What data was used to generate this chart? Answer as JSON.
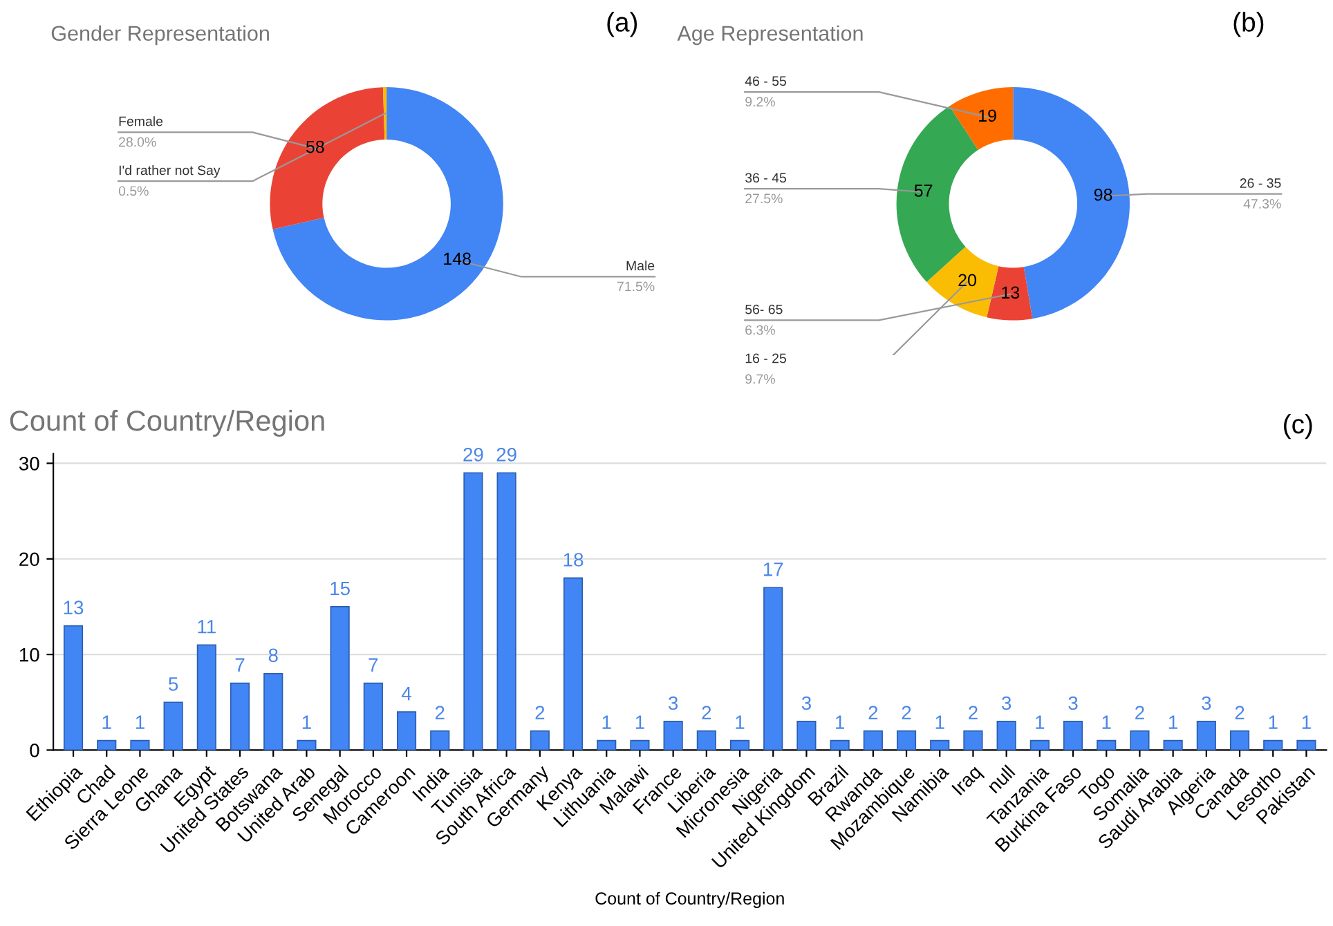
{
  "chart_data": [
    {
      "type": "donut",
      "title": "Gender Representation",
      "categories": [
        "Male",
        "Female",
        "I'd rather not Say"
      ],
      "values": [
        148,
        58,
        1
      ],
      "value_labels": [
        "148",
        "58",
        null
      ],
      "colors": [
        "#4285f4",
        "#ea4335",
        "#fbbc04"
      ],
      "annotations": [
        {
          "text": "71.5%",
          "x": "Male"
        },
        {
          "text": "28.0%",
          "x": "Female"
        },
        {
          "text": "0.5%",
          "x": "I'd rather not Say"
        },
        "(a)"
      ]
    },
    {
      "type": "donut",
      "title": "Age Representation",
      "categories": [
        "26 - 35",
        "56- 65",
        "16 - 25",
        "36 - 45",
        "46 - 55"
      ],
      "values": [
        98,
        13,
        20,
        57,
        19
      ],
      "data_labels": true,
      "colors": [
        "#4285f4",
        "#ea4335",
        "#fbbc04",
        "#34a853",
        "#ff6d01"
      ],
      "annotations": [
        {
          "text": "47.3%",
          "x": "26 - 35"
        },
        {
          "text": "6.3%",
          "x": "56- 65"
        },
        {
          "text": "9.7%",
          "x": "16 - 25"
        },
        {
          "text": "27.5%",
          "x": "36 - 45"
        },
        {
          "text": "9.2%",
          "x": "46 - 55"
        },
        "(b)"
      ]
    },
    {
      "type": "bar",
      "title": "Count of Country/Region",
      "xlabel": "Count of Country/Region",
      "categories": [
        "Ethiopia",
        "Chad",
        "Sierra Leone",
        "Ghana",
        "Egypt",
        "United States",
        "Botswana",
        "United Arab",
        "Senegal",
        "Morocco",
        "Cameroon",
        "India",
        "Tunisia",
        "South Africa",
        "Germany",
        "Kenya",
        "Lithuania",
        "Malawi",
        "France",
        "Liberia",
        "Micronesia",
        "Nigeria",
        "United Kingdom",
        "Brazil",
        "Rwanda",
        "Mozambique",
        "Namibia",
        "Iraq",
        "null",
        "Tanzania",
        "Burkina Faso",
        "Togo",
        "Somalia",
        "Saudi Arabia",
        "Algeria",
        "Canada",
        "Lesotho",
        "Pakistan"
      ],
      "values": [
        13,
        1,
        1,
        5,
        11,
        7,
        8,
        1,
        15,
        7,
        4,
        2,
        29,
        29,
        2,
        18,
        1,
        1,
        3,
        2,
        1,
        17,
        3,
        1,
        2,
        2,
        1,
        2,
        3,
        1,
        3,
        1,
        2,
        1,
        3,
        2,
        1,
        1
      ],
      "color": "#4285f4",
      "ylim": [
        0,
        31
      ],
      "yticks": [
        0,
        10,
        20,
        30
      ],
      "grid": "y",
      "data_labels": true,
      "legend": false,
      "annotations": [
        "(c)"
      ]
    }
  ]
}
